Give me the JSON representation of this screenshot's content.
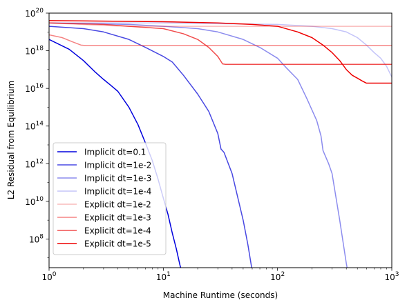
{
  "chart_data": {
    "type": "line",
    "xlabel": "Machine Runtime (seconds)",
    "ylabel": "L2 Residual from Equilibrium",
    "xscale": "log",
    "yscale": "log",
    "xlim": [
      1,
      1000
    ],
    "ylim": [
      3000000.0,
      1e+20
    ],
    "grid": false,
    "legend_position": "lower-left",
    "x_ticks": [
      {
        "value": 1,
        "base": "10",
        "exp": "0"
      },
      {
        "value": 10,
        "base": "10",
        "exp": "1"
      },
      {
        "value": 100,
        "base": "10",
        "exp": "2"
      },
      {
        "value": 1000,
        "base": "10",
        "exp": "3"
      }
    ],
    "y_ticks": [
      {
        "value": 100000000.0,
        "base": "10",
        "exp": "8"
      },
      {
        "value": 10000000000.0,
        "base": "10",
        "exp": "10"
      },
      {
        "value": 1000000000000.0,
        "base": "10",
        "exp": "12"
      },
      {
        "value": 100000000000000.0,
        "base": "10",
        "exp": "14"
      },
      {
        "value": 1e+16,
        "base": "10",
        "exp": "16"
      },
      {
        "value": 1e+18,
        "base": "10",
        "exp": "18"
      },
      {
        "value": 1e+20,
        "base": "10",
        "exp": "20"
      }
    ],
    "series": [
      {
        "name": "Implicit dt=0.1",
        "color": "#0000dd",
        "alpha": 1.0,
        "points": [
          [
            1,
            4e+18
          ],
          [
            1.5,
            1.2e+18
          ],
          [
            2,
            3e+17
          ],
          [
            2.5,
            8e+16
          ],
          [
            3,
            3e+16
          ],
          [
            3.5,
            1.4e+16
          ],
          [
            4,
            7000000000000000.0
          ],
          [
            5,
            1000000000000000.0
          ],
          [
            6,
            120000000000000.0
          ],
          [
            7,
            12000000000000.0
          ],
          [
            8,
            1500000000000.0
          ],
          [
            9,
            150000000000.0
          ],
          [
            10,
            15000000000.0
          ],
          [
            11,
            2000000000.0
          ],
          [
            12,
            200000000.0
          ],
          [
            13,
            30000000.0
          ],
          [
            14,
            4000000.0
          ],
          [
            15,
            1000000.0
          ]
        ]
      },
      {
        "name": "Implicit dt=1e-2",
        "color": "#1a1adb",
        "alpha": 0.8,
        "points": [
          [
            1,
            2e+19
          ],
          [
            2,
            1.5e+19
          ],
          [
            3,
            1e+19
          ],
          [
            5,
            4e+18
          ],
          [
            7,
            1.5e+18
          ],
          [
            10,
            5e+17
          ],
          [
            12,
            2.5e+17
          ],
          [
            15,
            5e+16
          ],
          [
            20,
            5000000000000000.0
          ],
          [
            25,
            600000000000000.0
          ],
          [
            30,
            40000000000000.0
          ],
          [
            32,
            6000000000000.0
          ],
          [
            34,
            4000000000000.0
          ],
          [
            40,
            300000000000.0
          ],
          [
            50,
            1000000000.0
          ],
          [
            55,
            50000000.0
          ],
          [
            60,
            2000000.0
          ],
          [
            62,
            1000000.0
          ]
        ]
      },
      {
        "name": "Implicit dt=1e-3",
        "color": "#2d2de0",
        "alpha": 0.55,
        "points": [
          [
            1,
            3e+19
          ],
          [
            5,
            2.5e+19
          ],
          [
            10,
            2e+19
          ],
          [
            20,
            1.5e+19
          ],
          [
            30,
            1e+19
          ],
          [
            50,
            4e+18
          ],
          [
            70,
            1.5e+18
          ],
          [
            100,
            4e+17
          ],
          [
            120,
            1.2e+17
          ],
          [
            150,
            3e+16
          ],
          [
            180,
            3000000000000000.0
          ],
          [
            220,
            200000000000000.0
          ],
          [
            240,
            30000000000000.0
          ],
          [
            250,
            5000000000000.0
          ],
          [
            280,
            1000000000000.0
          ],
          [
            300,
            300000000000.0
          ],
          [
            350,
            1000000000.0
          ],
          [
            400,
            5000000.0
          ],
          [
            420,
            1000000.0
          ]
        ]
      },
      {
        "name": "Implicit dt=1e-4",
        "color": "#5555ee",
        "alpha": 0.35,
        "points": [
          [
            1,
            3e+19
          ],
          [
            10,
            3e+19
          ],
          [
            100,
            2.5e+19
          ],
          [
            200,
            2e+19
          ],
          [
            300,
            1.5e+19
          ],
          [
            400,
            1e+19
          ],
          [
            500,
            5e+18
          ],
          [
            600,
            2e+18
          ],
          [
            700,
            8e+17
          ],
          [
            800,
            4e+17
          ],
          [
            900,
            1.5e+17
          ],
          [
            1000,
            4e+16
          ]
        ]
      },
      {
        "name": "Explicit dt=1e-2",
        "color": "#ee3a3a",
        "alpha": 0.35,
        "points": [
          [
            1,
            3e+19
          ],
          [
            3,
            2.2e+19
          ],
          [
            5,
            2e+19
          ],
          [
            10,
            2e+19
          ],
          [
            100,
            2e+19
          ],
          [
            1000,
            2e+19
          ]
        ]
      },
      {
        "name": "Explicit dt=1e-3",
        "color": "#ee3030",
        "alpha": 0.6,
        "points": [
          [
            1,
            7e+18
          ],
          [
            1.3,
            5e+18
          ],
          [
            1.6,
            3e+18
          ],
          [
            1.9,
            2e+18
          ],
          [
            2.1,
            1.9e+18
          ],
          [
            10,
            1.9e+18
          ],
          [
            100,
            1.9e+18
          ],
          [
            1000,
            1.9e+18
          ]
        ]
      },
      {
        "name": "Explicit dt=1e-4",
        "color": "#ee2020",
        "alpha": 0.8,
        "points": [
          [
            1,
            3e+19
          ],
          [
            3,
            2.5e+19
          ],
          [
            5,
            2e+19
          ],
          [
            10,
            1.5e+19
          ],
          [
            15,
            8e+18
          ],
          [
            20,
            4e+18
          ],
          [
            25,
            1.5e+18
          ],
          [
            30,
            5e+17
          ],
          [
            33,
            2e+17
          ],
          [
            35,
            1.9e+17
          ],
          [
            100,
            1.9e+17
          ],
          [
            1000,
            1.9e+17
          ]
        ]
      },
      {
        "name": "Explicit dt=1e-5",
        "color": "#ee0000",
        "alpha": 1.0,
        "points": [
          [
            1,
            4e+19
          ],
          [
            10,
            3.5e+19
          ],
          [
            30,
            3e+19
          ],
          [
            60,
            2.5e+19
          ],
          [
            100,
            2e+19
          ],
          [
            150,
            1e+19
          ],
          [
            200,
            5e+18
          ],
          [
            250,
            2e+18
          ],
          [
            300,
            8e+17
          ],
          [
            350,
            3e+17
          ],
          [
            400,
            1e+17
          ],
          [
            450,
            5e+16
          ],
          [
            500,
            3.5e+16
          ],
          [
            550,
            2.5e+16
          ],
          [
            600,
            1.9e+16
          ],
          [
            1000,
            1.9e+16
          ]
        ]
      }
    ]
  }
}
